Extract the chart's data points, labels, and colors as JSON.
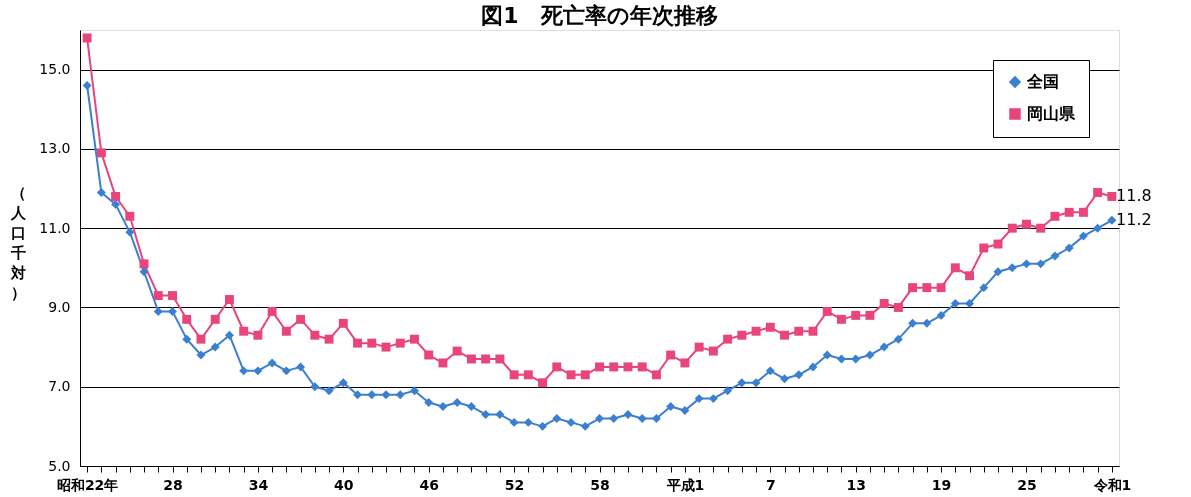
{
  "chart_data": {
    "type": "line",
    "title": "図1　死亡率の年次推移",
    "ylabel": "（人口千対）",
    "categories": [
      "昭和22年",
      null,
      null,
      null,
      null,
      null,
      "28",
      null,
      null,
      null,
      null,
      null,
      "34",
      null,
      null,
      null,
      null,
      null,
      "40",
      null,
      null,
      null,
      null,
      null,
      "46",
      null,
      null,
      null,
      null,
      null,
      "52",
      null,
      null,
      null,
      null,
      null,
      "58",
      null,
      null,
      null,
      null,
      null,
      "平成1",
      null,
      null,
      null,
      null,
      null,
      "7",
      null,
      null,
      null,
      null,
      null,
      "13",
      null,
      null,
      null,
      null,
      null,
      "19",
      null,
      null,
      null,
      null,
      null,
      "25",
      null,
      null,
      null,
      null,
      null,
      "令和1"
    ],
    "series": [
      {
        "name": "全国",
        "color": "#3b7fd0",
        "marker": "diamond",
        "values": [
          14.6,
          11.9,
          11.6,
          10.9,
          9.9,
          8.9,
          8.9,
          8.2,
          7.8,
          8.0,
          8.3,
          7.4,
          7.4,
          7.6,
          7.4,
          7.5,
          7.0,
          6.9,
          7.1,
          6.8,
          6.8,
          6.8,
          6.8,
          6.9,
          6.6,
          6.5,
          6.6,
          6.5,
          6.3,
          6.3,
          6.1,
          6.1,
          6.0,
          6.2,
          6.1,
          6.0,
          6.2,
          6.2,
          6.3,
          6.2,
          6.2,
          6.5,
          6.4,
          6.7,
          6.7,
          6.9,
          7.1,
          7.1,
          7.4,
          7.2,
          7.3,
          7.5,
          7.8,
          7.7,
          7.7,
          7.8,
          8.0,
          8.2,
          8.6,
          8.6,
          8.8,
          9.1,
          9.1,
          9.5,
          9.9,
          10.0,
          10.1,
          10.1,
          10.3,
          10.5,
          10.8,
          11.0,
          11.2
        ],
        "value_labels": [
          null,
          null,
          null,
          null,
          null,
          null,
          null,
          null,
          null,
          null,
          null,
          null,
          null,
          null,
          null,
          null,
          null,
          null,
          null,
          null,
          null,
          null,
          null,
          null,
          null,
          null,
          null,
          null,
          null,
          null,
          null,
          null,
          null,
          null,
          null,
          null,
          null,
          null,
          null,
          null,
          null,
          null,
          null,
          null,
          null,
          null,
          null,
          null,
          null,
          null,
          null,
          null,
          null,
          null,
          null,
          null,
          null,
          null,
          null,
          null,
          null,
          null,
          null,
          null,
          null,
          null,
          null,
          null,
          null,
          null,
          null,
          null,
          "11.2"
        ]
      },
      {
        "name": "岡山県",
        "color": "#e8457c",
        "marker": "square",
        "values": [
          15.8,
          12.9,
          11.8,
          11.3,
          10.1,
          9.3,
          9.3,
          8.7,
          8.2,
          8.7,
          9.2,
          8.4,
          8.3,
          8.9,
          8.4,
          8.7,
          8.3,
          8.2,
          8.6,
          8.1,
          8.1,
          8.0,
          8.1,
          8.2,
          7.8,
          7.6,
          7.9,
          7.7,
          7.7,
          7.7,
          7.3,
          7.3,
          7.1,
          7.5,
          7.3,
          7.3,
          7.5,
          7.5,
          7.5,
          7.5,
          7.3,
          7.8,
          7.6,
          8.0,
          7.9,
          8.2,
          8.3,
          8.4,
          8.5,
          8.3,
          8.4,
          8.4,
          8.9,
          8.7,
          8.8,
          8.8,
          9.1,
          9.0,
          9.5,
          9.5,
          9.5,
          10.0,
          9.8,
          10.5,
          10.6,
          11.0,
          11.1,
          11.0,
          11.3,
          11.4,
          11.4,
          11.9,
          11.8
        ],
        "value_labels": [
          null,
          null,
          null,
          null,
          null,
          null,
          null,
          null,
          null,
          null,
          null,
          null,
          null,
          null,
          null,
          null,
          null,
          null,
          null,
          null,
          null,
          null,
          null,
          null,
          null,
          null,
          null,
          null,
          null,
          null,
          null,
          null,
          null,
          null,
          null,
          null,
          null,
          null,
          null,
          null,
          null,
          null,
          null,
          null,
          null,
          null,
          null,
          null,
          null,
          null,
          null,
          null,
          null,
          null,
          null,
          null,
          null,
          null,
          null,
          null,
          null,
          null,
          null,
          null,
          null,
          null,
          null,
          null,
          null,
          null,
          null,
          null,
          "11.8"
        ]
      }
    ],
    "ylim": [
      5,
      16
    ],
    "yticks": [
      {
        "value": 5,
        "label": "5.0"
      },
      {
        "value": 7,
        "label": "7.0"
      },
      {
        "value": 9,
        "label": "9.0"
      },
      {
        "value": 11,
        "label": "11.0"
      },
      {
        "value": 13,
        "label": "13.0"
      },
      {
        "value": 15,
        "label": "15.0"
      }
    ],
    "grid": "y",
    "legend": "top right",
    "line_style": "solid"
  }
}
